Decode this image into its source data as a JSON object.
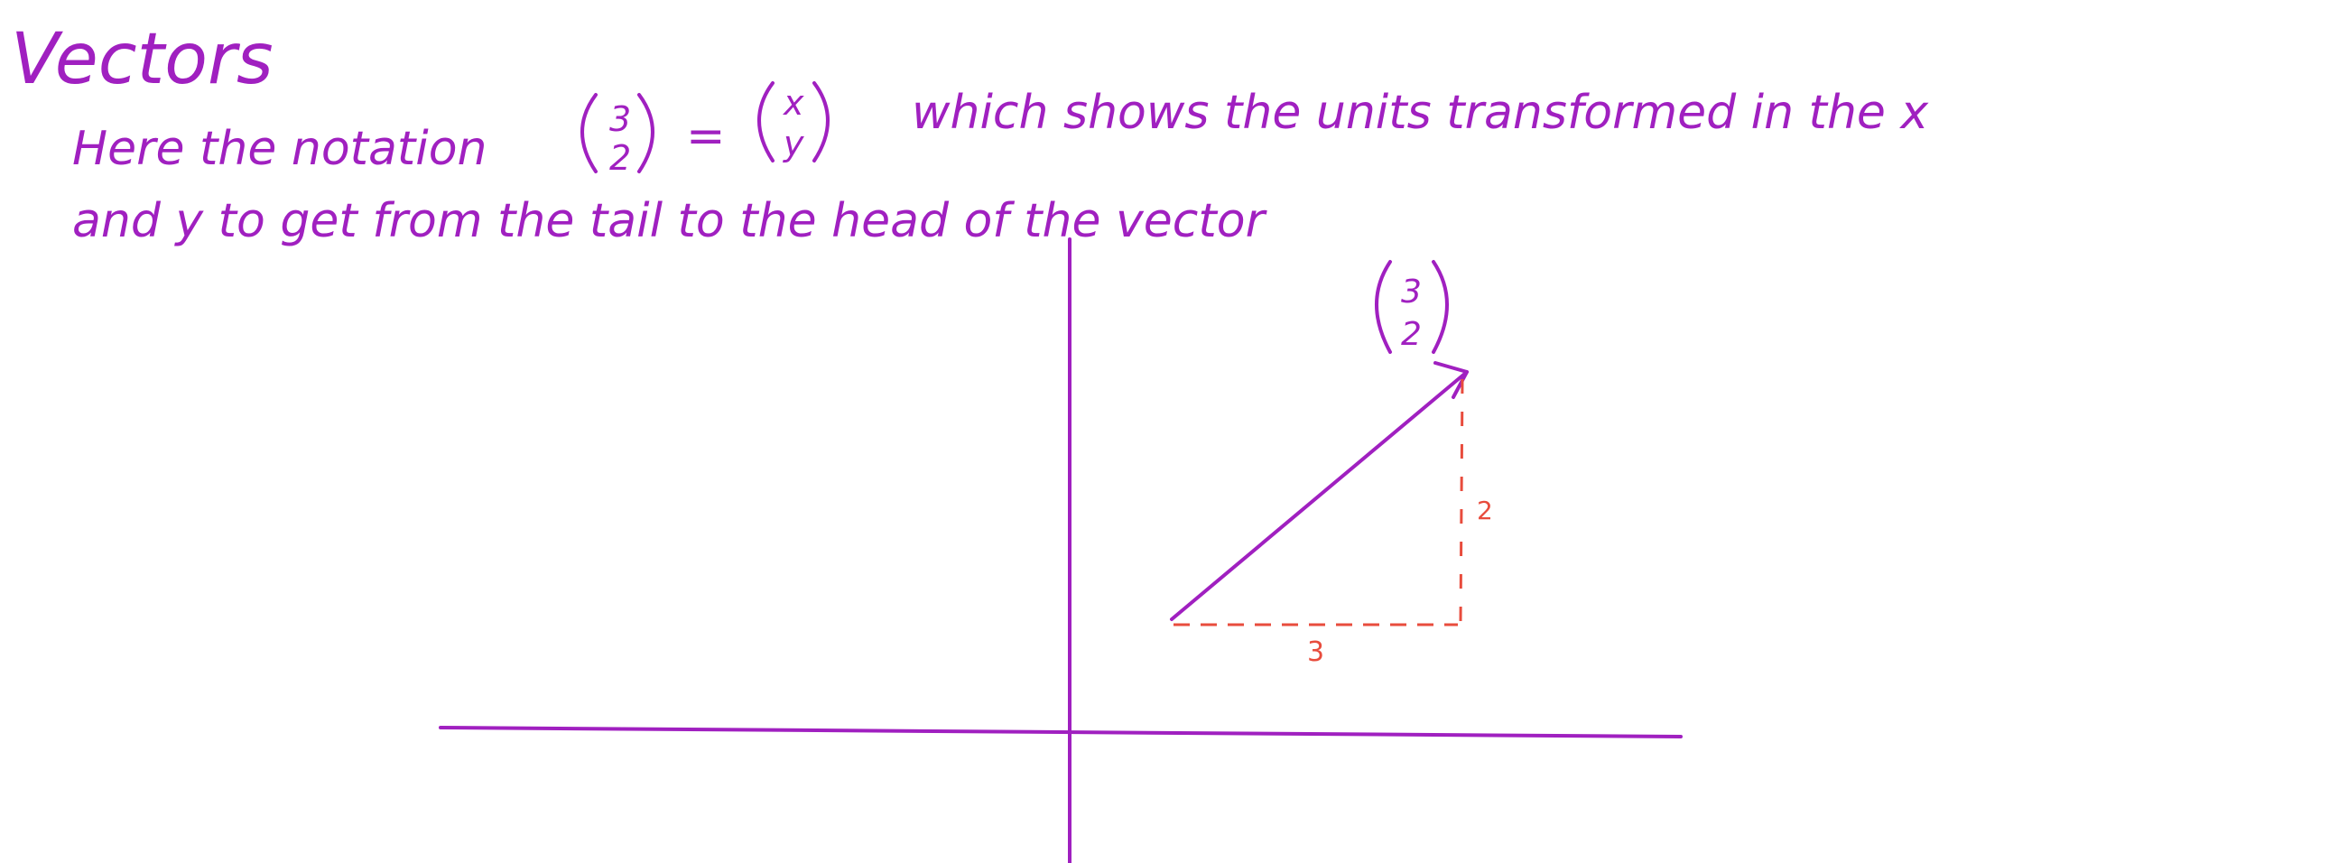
{
  "title": "Vectors",
  "line1": {
    "before": "Here the notation",
    "vector": {
      "top": "3",
      "bottom": "2"
    },
    "equals": "=",
    "general": {
      "top": "x",
      "bottom": "y"
    },
    "after": "which shows the units transformed in the x"
  },
  "line2": "and y to get from the tail to the head of the vector",
  "diagram": {
    "vector_label": {
      "top": "3",
      "bottom": "2"
    },
    "components": {
      "x": "3",
      "y": "2"
    }
  },
  "colors": {
    "ink": "#a020c0",
    "component": "#e84c3d",
    "background": "#ffffff"
  }
}
